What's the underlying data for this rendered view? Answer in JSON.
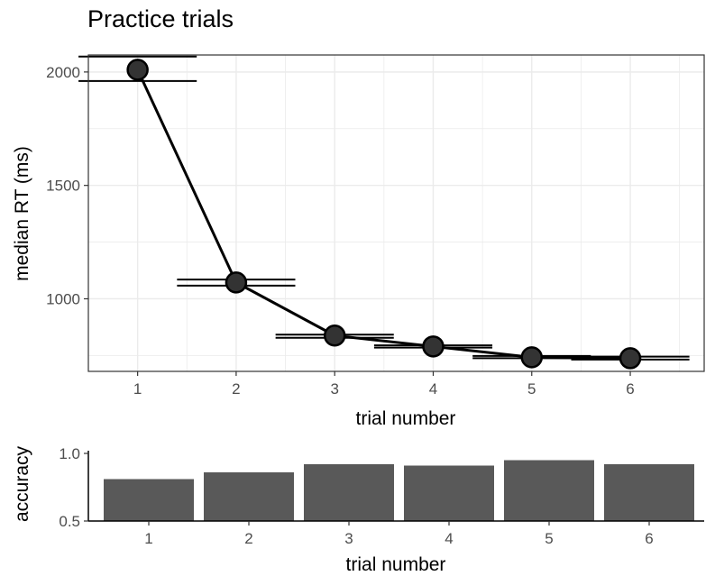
{
  "chart_data": [
    {
      "type": "line",
      "title": "Practice trials",
      "xlabel": "trial number",
      "ylabel": "median RT (ms)",
      "x": [
        1,
        2,
        3,
        4,
        5,
        6
      ],
      "series": [
        {
          "values": [
            2010,
            1072,
            838,
            790,
            742,
            738
          ],
          "error_bars": [
            [
              1960,
              2068
            ],
            [
              1058,
              1085
            ],
            [
              828,
              842
            ],
            [
              785,
              795
            ],
            [
              738,
              748
            ],
            [
              732,
              745
            ]
          ]
        }
      ],
      "xticks": [
        "1",
        "2",
        "3",
        "4",
        "5",
        "6"
      ],
      "yticks": [
        "1000",
        "1500",
        "2000"
      ],
      "xlim": [
        0.5,
        6.75
      ],
      "ylim": [
        680,
        2075
      ],
      "grid": true
    },
    {
      "type": "bar",
      "xlabel": "trial number",
      "ylabel": "accuracy",
      "categories": [
        "1",
        "2",
        "3",
        "4",
        "5",
        "6"
      ],
      "values": [
        0.81,
        0.86,
        0.92,
        0.91,
        0.95,
        0.92
      ],
      "yticks": [
        "0.5",
        "1.0"
      ],
      "ylim": [
        0.5,
        1.02
      ],
      "grid": false
    }
  ],
  "colors": {
    "line": "#000000",
    "point_fill": "#333333",
    "bar_fill": "#595959",
    "grid": "#ebebeb",
    "panel_border": "#333333"
  }
}
